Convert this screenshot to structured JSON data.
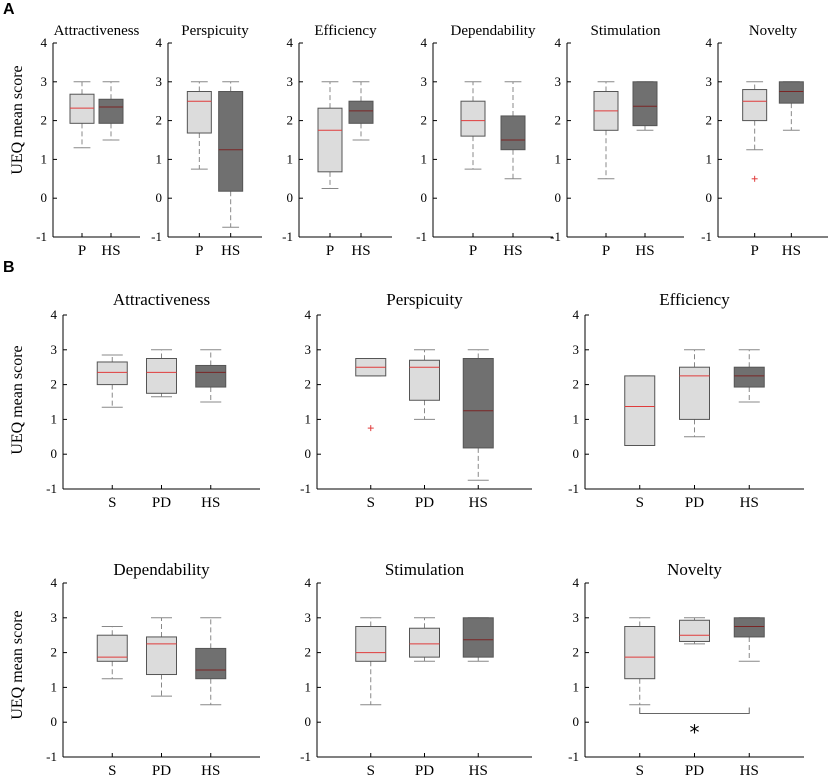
{
  "figure": {
    "panel_a_label": "A",
    "panel_b_label": "B",
    "ylabel": "UEQ mean score"
  },
  "colors": {
    "light_box": "#dcdcdc",
    "dark_box": "#707070",
    "median": "#e03c3c",
    "median_dark": "#7a2525",
    "outlier": "#e03c3c",
    "whisker": "#888888",
    "axis": "#000000"
  },
  "chart_data": [
    {
      "panel": "A",
      "type": "boxplot",
      "title": "Attractiveness",
      "ylabel": "UEQ mean score",
      "ylim": [
        -1,
        4
      ],
      "yticks": [
        -1,
        0,
        1,
        2,
        3,
        4
      ],
      "categories": [
        "P",
        "HS"
      ],
      "boxes": [
        {
          "label": "P",
          "min": 1.3,
          "q1": 1.93,
          "median": 2.32,
          "q3": 2.68,
          "max": 3.0,
          "outliers": [],
          "shade": "light"
        },
        {
          "label": "HS",
          "min": 1.5,
          "q1": 1.93,
          "median": 2.35,
          "q3": 2.55,
          "max": 3.0,
          "outliers": [],
          "shade": "dark"
        }
      ]
    },
    {
      "panel": "A",
      "type": "boxplot",
      "title": "Perspicuity",
      "ylim": [
        -1,
        4
      ],
      "yticks": [
        -1,
        0,
        1,
        2,
        3,
        4
      ],
      "categories": [
        "P",
        "HS"
      ],
      "boxes": [
        {
          "label": "P",
          "min": 0.75,
          "q1": 1.68,
          "median": 2.5,
          "q3": 2.75,
          "max": 3.0,
          "outliers": [],
          "shade": "light"
        },
        {
          "label": "HS",
          "min": -0.75,
          "q1": 0.18,
          "median": 1.25,
          "q3": 2.75,
          "max": 3.0,
          "outliers": [],
          "shade": "dark"
        }
      ]
    },
    {
      "panel": "A",
      "type": "boxplot",
      "title": "Efficiency",
      "ylim": [
        -1,
        4
      ],
      "yticks": [
        -1,
        0,
        1,
        2,
        3,
        4
      ],
      "categories": [
        "P",
        "HS"
      ],
      "boxes": [
        {
          "label": "P",
          "min": 0.25,
          "q1": 0.68,
          "median": 1.75,
          "q3": 2.32,
          "max": 3.0,
          "outliers": [],
          "shade": "light"
        },
        {
          "label": "HS",
          "min": 1.5,
          "q1": 1.93,
          "median": 2.25,
          "q3": 2.5,
          "max": 3.0,
          "outliers": [],
          "shade": "dark"
        }
      ]
    },
    {
      "panel": "A",
      "type": "boxplot",
      "title": "Dependability",
      "ylim": [
        -1,
        4
      ],
      "yticks": [
        -1,
        0,
        1,
        2,
        3,
        4
      ],
      "categories": [
        "P",
        "HS"
      ],
      "boxes": [
        {
          "label": "P",
          "min": 0.75,
          "q1": 1.6,
          "median": 2.0,
          "q3": 2.5,
          "max": 3.0,
          "outliers": [],
          "shade": "light"
        },
        {
          "label": "HS",
          "min": 0.5,
          "q1": 1.25,
          "median": 1.5,
          "q3": 2.12,
          "max": 3.0,
          "outliers": [],
          "shade": "dark"
        }
      ]
    },
    {
      "panel": "A",
      "type": "boxplot",
      "title": "Stimulation",
      "ylim": [
        -1,
        4
      ],
      "yticks": [
        -1,
        0,
        1,
        2,
        3,
        4
      ],
      "categories": [
        "P",
        "HS"
      ],
      "boxes": [
        {
          "label": "P",
          "min": 0.5,
          "q1": 1.75,
          "median": 2.25,
          "q3": 2.75,
          "max": 3.0,
          "outliers": [],
          "shade": "light"
        },
        {
          "label": "HS",
          "min": 1.75,
          "q1": 1.87,
          "median": 2.37,
          "q3": 3.0,
          "max": 3.0,
          "outliers": [],
          "shade": "dark"
        }
      ]
    },
    {
      "panel": "A",
      "type": "boxplot",
      "title": "Novelty",
      "ylim": [
        -1,
        4
      ],
      "yticks": [
        -1,
        0,
        1,
        2,
        3,
        4
      ],
      "categories": [
        "P",
        "HS"
      ],
      "boxes": [
        {
          "label": "P",
          "min": 1.25,
          "q1": 2.0,
          "median": 2.5,
          "q3": 2.8,
          "max": 3.0,
          "outliers": [
            0.5
          ],
          "shade": "light"
        },
        {
          "label": "HS",
          "min": 1.75,
          "q1": 2.45,
          "median": 2.75,
          "q3": 3.0,
          "max": 3.0,
          "outliers": [],
          "shade": "dark"
        }
      ]
    },
    {
      "panel": "B",
      "type": "boxplot",
      "title": "Attractiveness",
      "ylabel": "UEQ mean score",
      "ylim": [
        -1,
        4
      ],
      "yticks": [
        -1,
        0,
        1,
        2,
        3,
        4
      ],
      "categories": [
        "S",
        "PD",
        "HS"
      ],
      "boxes": [
        {
          "label": "S",
          "min": 1.35,
          "q1": 2.0,
          "median": 2.35,
          "q3": 2.65,
          "max": 2.85,
          "outliers": [],
          "shade": "light"
        },
        {
          "label": "PD",
          "min": 1.65,
          "q1": 1.75,
          "median": 2.35,
          "q3": 2.75,
          "max": 3.0,
          "outliers": [],
          "shade": "light"
        },
        {
          "label": "HS",
          "min": 1.5,
          "q1": 1.93,
          "median": 2.35,
          "q3": 2.55,
          "max": 3.0,
          "outliers": [],
          "shade": "dark"
        }
      ]
    },
    {
      "panel": "B",
      "type": "boxplot",
      "title": "Perspicuity",
      "ylim": [
        -1,
        4
      ],
      "yticks": [
        -1,
        0,
        1,
        2,
        3,
        4
      ],
      "categories": [
        "S",
        "PD",
        "HS"
      ],
      "boxes": [
        {
          "label": "S",
          "min": 2.25,
          "q1": 2.25,
          "median": 2.5,
          "q3": 2.75,
          "max": 2.75,
          "outliers": [
            0.75
          ],
          "shade": "light"
        },
        {
          "label": "PD",
          "min": 1.0,
          "q1": 1.55,
          "median": 2.5,
          "q3": 2.7,
          "max": 3.0,
          "outliers": [],
          "shade": "light"
        },
        {
          "label": "HS",
          "min": -0.75,
          "q1": 0.18,
          "median": 1.25,
          "q3": 2.75,
          "max": 3.0,
          "outliers": [],
          "shade": "dark"
        }
      ]
    },
    {
      "panel": "B",
      "type": "boxplot",
      "title": "Efficiency",
      "ylim": [
        -1,
        4
      ],
      "yticks": [
        -1,
        0,
        1,
        2,
        3,
        4
      ],
      "categories": [
        "S",
        "PD",
        "HS"
      ],
      "boxes": [
        {
          "label": "S",
          "min": 0.25,
          "q1": 0.25,
          "median": 1.37,
          "q3": 2.25,
          "max": 2.25,
          "outliers": [],
          "shade": "light"
        },
        {
          "label": "PD",
          "min": 0.5,
          "q1": 1.0,
          "median": 2.25,
          "q3": 2.5,
          "max": 3.0,
          "outliers": [],
          "shade": "light"
        },
        {
          "label": "HS",
          "min": 1.5,
          "q1": 1.93,
          "median": 2.25,
          "q3": 2.5,
          "max": 3.0,
          "outliers": [],
          "shade": "dark"
        }
      ]
    },
    {
      "panel": "B",
      "type": "boxplot",
      "title": "Dependability",
      "ylabel": "UEQ mean score",
      "ylim": [
        -1,
        4
      ],
      "yticks": [
        -1,
        0,
        1,
        2,
        3,
        4
      ],
      "categories": [
        "S",
        "PD",
        "HS"
      ],
      "boxes": [
        {
          "label": "S",
          "min": 1.25,
          "q1": 1.75,
          "median": 1.87,
          "q3": 2.5,
          "max": 2.75,
          "outliers": [],
          "shade": "light"
        },
        {
          "label": "PD",
          "min": 0.75,
          "q1": 1.37,
          "median": 2.25,
          "q3": 2.45,
          "max": 3.0,
          "outliers": [],
          "shade": "light"
        },
        {
          "label": "HS",
          "min": 0.5,
          "q1": 1.25,
          "median": 1.5,
          "q3": 2.12,
          "max": 3.0,
          "outliers": [],
          "shade": "dark"
        }
      ]
    },
    {
      "panel": "B",
      "type": "boxplot",
      "title": "Stimulation",
      "ylim": [
        -1,
        4
      ],
      "yticks": [
        -1,
        0,
        1,
        2,
        3,
        4
      ],
      "categories": [
        "S",
        "PD",
        "HS"
      ],
      "boxes": [
        {
          "label": "S",
          "min": 0.5,
          "q1": 1.75,
          "median": 2.0,
          "q3": 2.75,
          "max": 3.0,
          "outliers": [],
          "shade": "light"
        },
        {
          "label": "PD",
          "min": 1.75,
          "q1": 1.87,
          "median": 2.25,
          "q3": 2.7,
          "max": 3.0,
          "outliers": [],
          "shade": "light"
        },
        {
          "label": "HS",
          "min": 1.75,
          "q1": 1.87,
          "median": 2.37,
          "q3": 3.0,
          "max": 3.0,
          "outliers": [],
          "shade": "dark"
        }
      ]
    },
    {
      "panel": "B",
      "type": "boxplot",
      "title": "Novelty",
      "ylim": [
        -1,
        4
      ],
      "yticks": [
        -1,
        0,
        1,
        2,
        3,
        4
      ],
      "categories": [
        "S",
        "PD",
        "HS"
      ],
      "boxes": [
        {
          "label": "S",
          "min": 0.5,
          "q1": 1.25,
          "median": 1.87,
          "q3": 2.75,
          "max": 3.0,
          "outliers": [],
          "shade": "light"
        },
        {
          "label": "PD",
          "min": 2.25,
          "q1": 2.32,
          "median": 2.5,
          "q3": 2.93,
          "max": 3.0,
          "outliers": [],
          "shade": "light"
        },
        {
          "label": "HS",
          "min": 1.75,
          "q1": 2.45,
          "median": 2.75,
          "q3": 3.0,
          "max": 3.0,
          "outliers": [],
          "shade": "dark"
        }
      ]
    }
  ],
  "annotations": [
    {
      "panel": "B",
      "subplot": "Novelty",
      "type": "significance",
      "from": "S",
      "to": "HS",
      "bracket_y": 0.25,
      "text": "*"
    }
  ]
}
